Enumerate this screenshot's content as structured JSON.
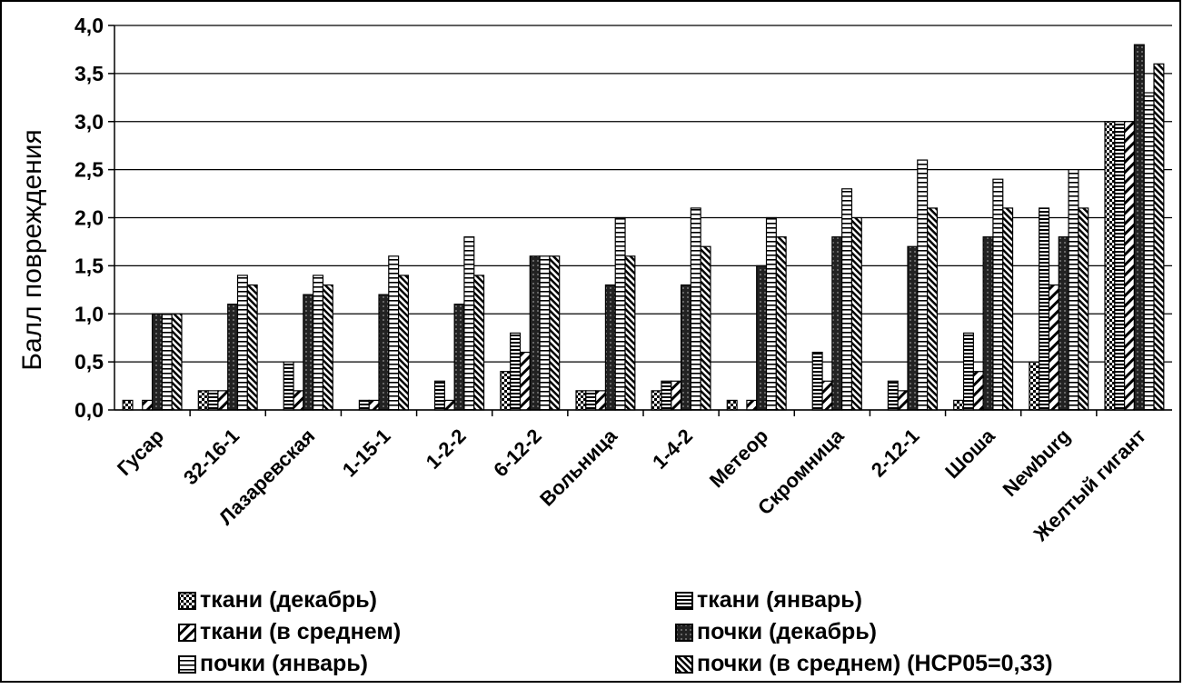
{
  "chart_data": {
    "type": "bar",
    "ylabel": "Балл повреждения",
    "ylim": [
      0,
      4.0
    ],
    "yticks": [
      "0,0",
      "0,5",
      "1,0",
      "1,5",
      "2,0",
      "2,5",
      "3,0",
      "3,5",
      "4,0"
    ],
    "grid": true,
    "legend_position": "bottom",
    "categories": [
      "Гусар",
      "32-16-1",
      "Лазаревская",
      "1-15-1",
      "1-2-2",
      "6-12-2",
      "Вольница",
      "1-4-2",
      "Метеор",
      "Скромница",
      "2-12-1",
      "Шоша",
      "Newburg",
      "Желтый гигант"
    ],
    "series": [
      {
        "name": "ткани (декабрь)",
        "pattern": "checker",
        "values": [
          0.1,
          0.2,
          0.0,
          0.0,
          0.0,
          0.4,
          0.2,
          0.2,
          0.1,
          0.0,
          0.0,
          0.1,
          0.5,
          3.0
        ]
      },
      {
        "name": "ткани (январь)",
        "pattern": "hlines",
        "values": [
          0.0,
          0.2,
          0.5,
          0.1,
          0.3,
          0.8,
          0.2,
          0.3,
          0.0,
          0.6,
          0.3,
          0.8,
          2.1,
          3.0
        ]
      },
      {
        "name": "ткани (в среднем)",
        "pattern": "diag",
        "values": [
          0.1,
          0.2,
          0.2,
          0.1,
          0.1,
          0.6,
          0.2,
          0.3,
          0.1,
          0.3,
          0.2,
          0.4,
          1.3,
          3.0
        ]
      },
      {
        "name": "почки (декабрь)",
        "pattern": "crosshatch",
        "values": [
          1.0,
          1.1,
          1.2,
          1.2,
          1.1,
          1.6,
          1.3,
          1.3,
          1.5,
          1.8,
          1.7,
          1.8,
          1.8,
          3.8
        ]
      },
      {
        "name": "почки (январь)",
        "pattern": "hlines-wide",
        "values": [
          1.0,
          1.4,
          1.4,
          1.6,
          1.8,
          1.6,
          2.0,
          2.1,
          2.0,
          2.3,
          2.6,
          2.4,
          2.5,
          3.3
        ]
      },
      {
        "name": "почки (в среднем) (НСР05=0,33)",
        "pattern": "diag-dense",
        "values": [
          1.0,
          1.3,
          1.3,
          1.4,
          1.4,
          1.6,
          1.6,
          1.7,
          1.8,
          2.0,
          2.1,
          2.1,
          2.1,
          3.6
        ]
      }
    ]
  }
}
